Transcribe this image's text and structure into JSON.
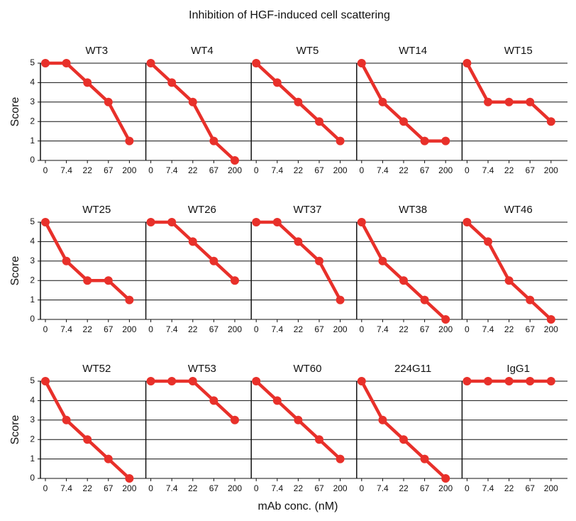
{
  "title": "Inhibition of HGF-induced cell scattering",
  "x_label": "mAb conc. (nM)",
  "y_label": "Score",
  "chart_data": [
    {
      "type": "line",
      "title": "WT3",
      "categories": [
        "0",
        "7.4",
        "22",
        "67",
        "200"
      ],
      "values": [
        5,
        5,
        4,
        3,
        1
      ],
      "color": "#e8302a",
      "ylim": [
        0,
        5
      ],
      "yticks": [
        0,
        1,
        2,
        3,
        4,
        5
      ],
      "grid": true
    },
    {
      "type": "line",
      "title": "WT4",
      "categories": [
        "0",
        "7.4",
        "22",
        "67",
        "200"
      ],
      "values": [
        5,
        4,
        3,
        1,
        0
      ],
      "color": "#e8302a",
      "ylim": [
        0,
        5
      ],
      "yticks": [
        0,
        1,
        2,
        3,
        4,
        5
      ],
      "grid": true
    },
    {
      "type": "line",
      "title": "WT5",
      "categories": [
        "0",
        "7.4",
        "22",
        "67",
        "200"
      ],
      "values": [
        5,
        4,
        3,
        2,
        1
      ],
      "color": "#e8302a",
      "ylim": [
        0,
        5
      ],
      "yticks": [
        0,
        1,
        2,
        3,
        4,
        5
      ],
      "grid": true
    },
    {
      "type": "line",
      "title": "WT14",
      "categories": [
        "0",
        "7.4",
        "22",
        "67",
        "200"
      ],
      "values": [
        5,
        3,
        2,
        1,
        1
      ],
      "color": "#e8302a",
      "ylim": [
        0,
        5
      ],
      "yticks": [
        0,
        1,
        2,
        3,
        4,
        5
      ],
      "grid": true
    },
    {
      "type": "line",
      "title": "WT15",
      "categories": [
        "0",
        "7.4",
        "22",
        "67",
        "200"
      ],
      "values": [
        5,
        3,
        3,
        3,
        2
      ],
      "color": "#e8302a",
      "ylim": [
        0,
        5
      ],
      "yticks": [
        0,
        1,
        2,
        3,
        4,
        5
      ],
      "grid": true
    },
    {
      "type": "line",
      "title": "WT25",
      "categories": [
        "0",
        "7.4",
        "22",
        "67",
        "200"
      ],
      "values": [
        5,
        3,
        2,
        2,
        1
      ],
      "color": "#e8302a",
      "ylim": [
        0,
        5
      ],
      "yticks": [
        0,
        1,
        2,
        3,
        4,
        5
      ],
      "grid": true
    },
    {
      "type": "line",
      "title": "WT26",
      "categories": [
        "0",
        "7.4",
        "22",
        "67",
        "200"
      ],
      "values": [
        5,
        5,
        4,
        3,
        2
      ],
      "color": "#e8302a",
      "ylim": [
        0,
        5
      ],
      "yticks": [
        0,
        1,
        2,
        3,
        4,
        5
      ],
      "grid": true
    },
    {
      "type": "line",
      "title": "WT37",
      "categories": [
        "0",
        "7.4",
        "22",
        "67",
        "200"
      ],
      "values": [
        5,
        5,
        4,
        3,
        1
      ],
      "color": "#e8302a",
      "ylim": [
        0,
        5
      ],
      "yticks": [
        0,
        1,
        2,
        3,
        4,
        5
      ],
      "grid": true
    },
    {
      "type": "line",
      "title": "WT38",
      "categories": [
        "0",
        "7.4",
        "22",
        "67",
        "200"
      ],
      "values": [
        5,
        3,
        2,
        1,
        0
      ],
      "color": "#e8302a",
      "ylim": [
        0,
        5
      ],
      "yticks": [
        0,
        1,
        2,
        3,
        4,
        5
      ],
      "grid": true
    },
    {
      "type": "line",
      "title": "WT46",
      "categories": [
        "0",
        "7.4",
        "22",
        "67",
        "200"
      ],
      "values": [
        5,
        4,
        2,
        1,
        0
      ],
      "color": "#e8302a",
      "ylim": [
        0,
        5
      ],
      "yticks": [
        0,
        1,
        2,
        3,
        4,
        5
      ],
      "grid": true
    },
    {
      "type": "line",
      "title": "WT52",
      "categories": [
        "0",
        "7.4",
        "22",
        "67",
        "200"
      ],
      "values": [
        5,
        3,
        2,
        1,
        0
      ],
      "color": "#e8302a",
      "ylim": [
        0,
        5
      ],
      "yticks": [
        0,
        1,
        2,
        3,
        4,
        5
      ],
      "grid": true
    },
    {
      "type": "line",
      "title": "WT53",
      "categories": [
        "0",
        "7.4",
        "22",
        "67",
        "200"
      ],
      "values": [
        5,
        5,
        5,
        4,
        3
      ],
      "color": "#e8302a",
      "ylim": [
        0,
        5
      ],
      "yticks": [
        0,
        1,
        2,
        3,
        4,
        5
      ],
      "grid": true
    },
    {
      "type": "line",
      "title": "WT60",
      "categories": [
        "0",
        "7.4",
        "22",
        "67",
        "200"
      ],
      "values": [
        5,
        4,
        3,
        2,
        1
      ],
      "color": "#e8302a",
      "ylim": [
        0,
        5
      ],
      "yticks": [
        0,
        1,
        2,
        3,
        4,
        5
      ],
      "grid": true
    },
    {
      "type": "line",
      "title": "224G11",
      "categories": [
        "0",
        "7.4",
        "22",
        "67",
        "200"
      ],
      "values": [
        5,
        3,
        2,
        1,
        0
      ],
      "color": "#e8302a",
      "ylim": [
        0,
        5
      ],
      "yticks": [
        0,
        1,
        2,
        3,
        4,
        5
      ],
      "grid": true
    },
    {
      "type": "line",
      "title": "IgG1",
      "categories": [
        "0",
        "7.4",
        "22",
        "67",
        "200"
      ],
      "values": [
        5,
        5,
        5,
        5,
        5
      ],
      "color": "#e8302a",
      "ylim": [
        0,
        5
      ],
      "yticks": [
        0,
        1,
        2,
        3,
        4,
        5
      ],
      "grid": true
    }
  ]
}
